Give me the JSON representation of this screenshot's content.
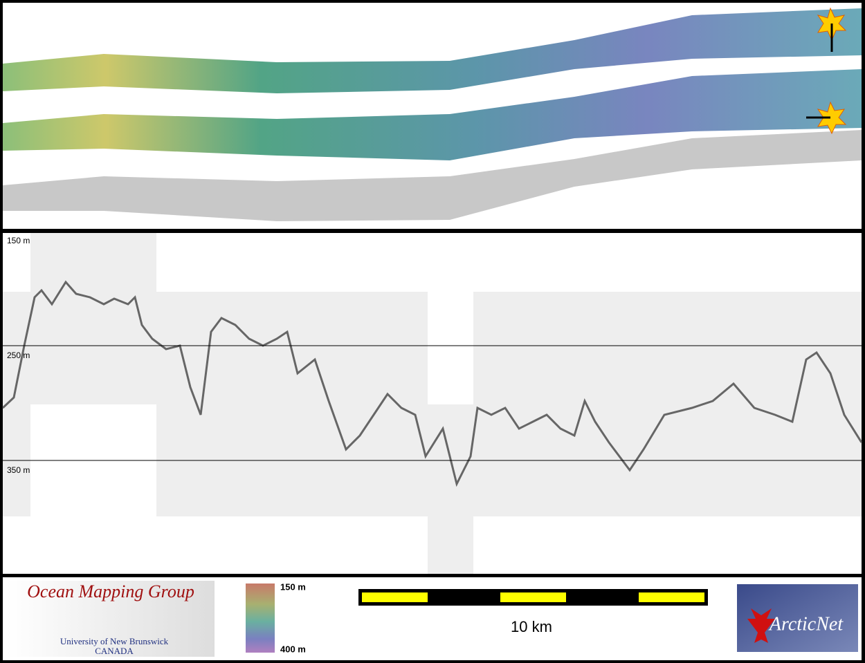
{
  "profile": {
    "depth_labels": [
      "150 m",
      "250 m",
      "350 m"
    ]
  },
  "logo": {
    "title": "Ocean Mapping Group",
    "university": "University of New Brunswick",
    "country": "CANADA"
  },
  "colorbar": {
    "top": "150 m",
    "bottom": "400 m"
  },
  "scalebar": {
    "label": "10 km"
  },
  "partner": {
    "label": "ArcticNet"
  }
}
